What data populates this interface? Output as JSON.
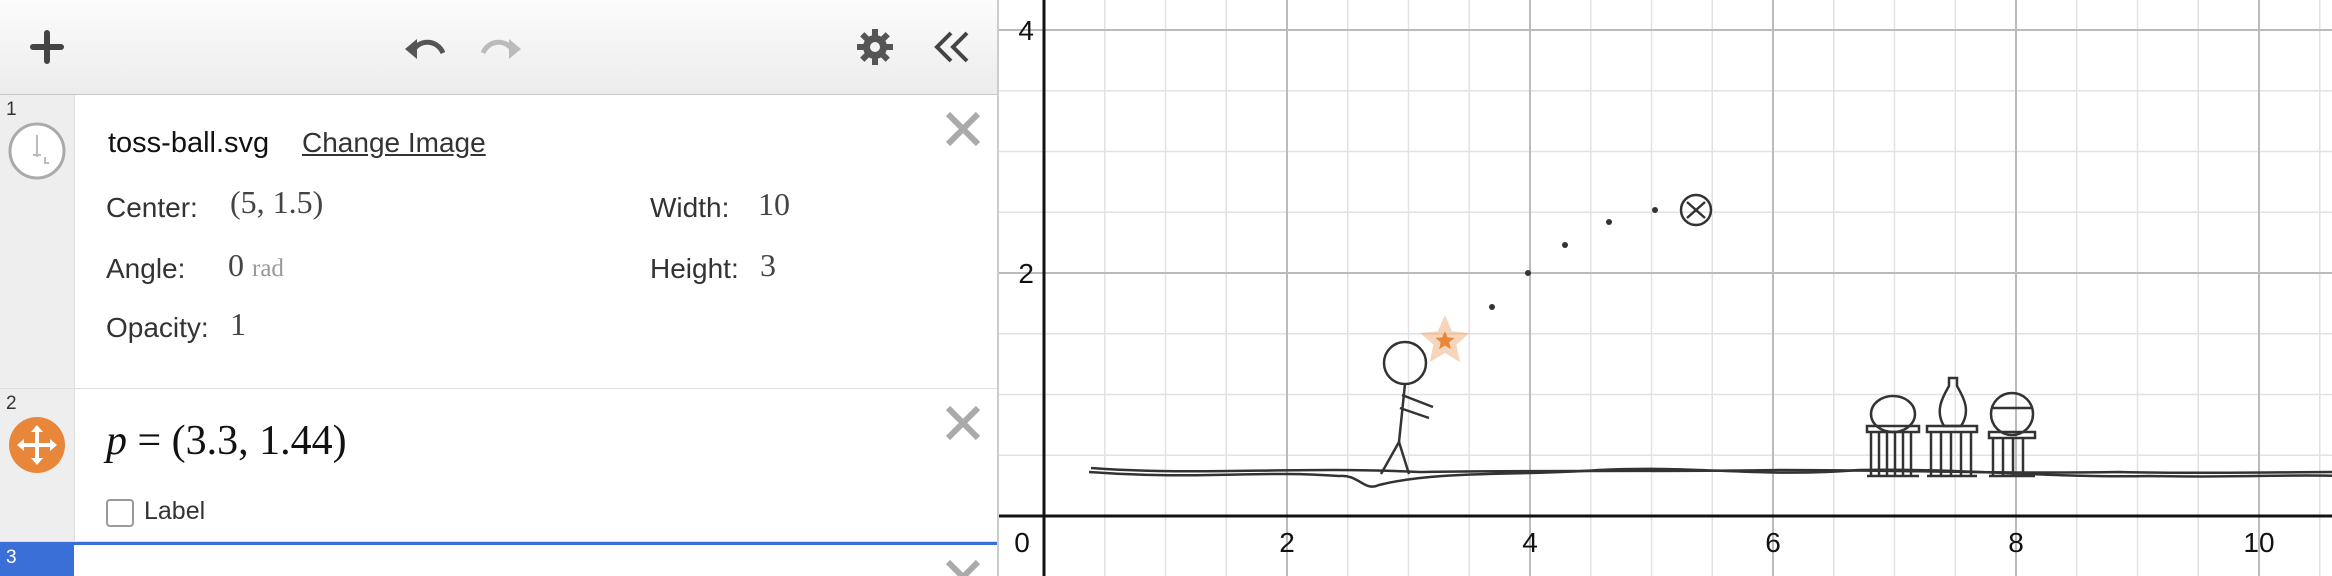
{
  "toolbar": {
    "add_icon": "plus-icon",
    "undo_icon": "undo-icon",
    "redo_icon": "redo-icon",
    "settings_icon": "gear-icon",
    "collapse_icon": "double-chevron-left-icon"
  },
  "expressions": [
    {
      "index": "1",
      "image": {
        "filename": "toss-ball.svg",
        "change_link": "Change Image",
        "center_label": "Center:",
        "center_value": "(5, 1.5)",
        "width_label": "Width:",
        "width_value": "10",
        "angle_label": "Angle:",
        "angle_value": "0",
        "angle_unit": "rad",
        "height_label": "Height:",
        "height_value": "3",
        "opacity_label": "Opacity:",
        "opacity_value": "1"
      }
    },
    {
      "index": "2",
      "formula_var": "p",
      "formula_rest": "= (3.3, 1.44)",
      "label_checkbox": "Label",
      "label_checked": false,
      "point_color": "#e8873a"
    },
    {
      "index": "3",
      "formula": "",
      "active_color": "#3a6fd8"
    }
  ],
  "graph": {
    "x_ticks": [
      "0",
      "2",
      "4",
      "6",
      "8",
      "10"
    ],
    "y_ticks": [
      "2",
      "4"
    ],
    "point": {
      "x": 3.3,
      "y": 1.44,
      "color": "#e8873a"
    }
  }
}
